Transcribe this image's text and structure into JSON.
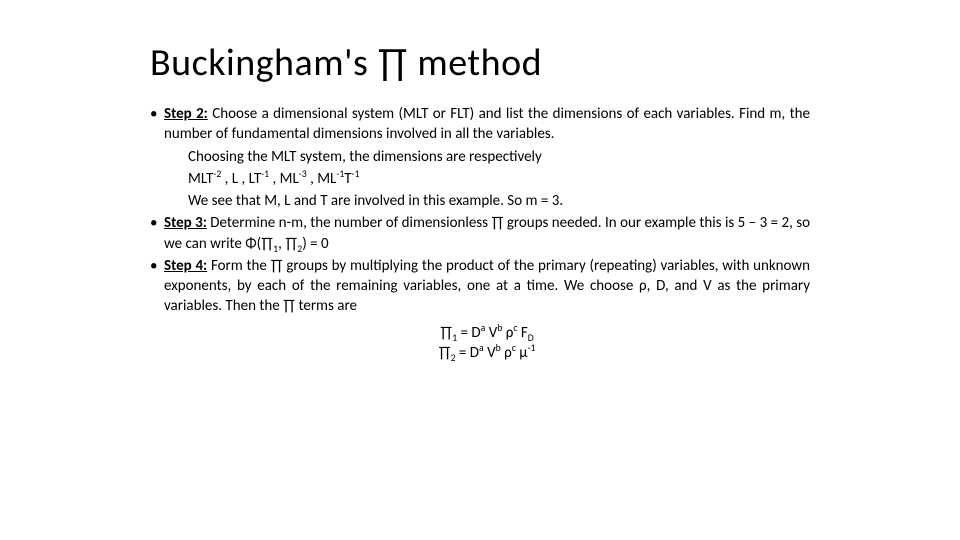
{
  "title": "Buckingham's ∏ method",
  "bullets": {
    "step2": {
      "label": "Step 2:",
      "text_a": " Choose a dimensional system (MLT or FLT) and list the dimensions of each variables. Find m, the number of fundamental dimensions involved in all the variables.",
      "line1": "Choosing the MLT system, the dimensions are respectively",
      "line2_pre": "MLT",
      "line2_rest": " , L , LT",
      "line2_rest2": " , ML",
      "line2_rest3": " , ML",
      "line2_rest4": "T",
      "line3": "We see that M, L and T are involved in this example. So m = 3."
    },
    "step3": {
      "label": "Step 3:",
      "text_a": " Determine n-m, the number of dimensionless ∏ groups needed. In our example this is 5 – 3 = 2, so we can write Φ(∏",
      "text_b": ", ∏",
      "text_c": ") = 0"
    },
    "step4": {
      "label": "Step 4:",
      "text_a": " Form the ∏ groups by multiplying the product of the primary (repeating) variables, with unknown exponents, by each of the remaining variables, one at a time. We choose ρ, D, and V as the primary variables. Then the ∏ terms are",
      "eq1_a": "∏",
      "eq1_b": " =  D",
      "eq1_c": " V",
      "eq1_d": " ρ",
      "eq1_e": " F",
      "eq2_a": "∏",
      "eq2_b": " = D",
      "eq2_c": " V",
      "eq2_d": " ρ",
      "eq2_e": " μ"
    }
  },
  "sups": {
    "neg2": "-2",
    "neg1": "-1",
    "neg3": "-3",
    "a": "a",
    "b": "b",
    "c": "c"
  },
  "subs": {
    "one": "1",
    "two": "2",
    "D": "D"
  }
}
